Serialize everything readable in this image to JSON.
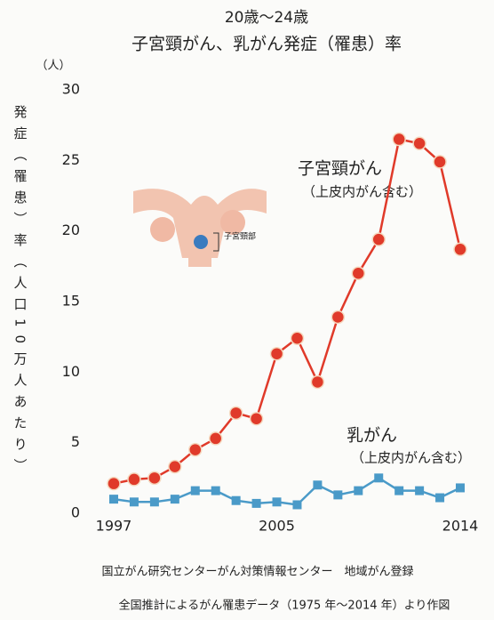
{
  "chart_data": {
    "type": "line",
    "title": "20歳～24歳",
    "subtitle": "子宮頸がん、乳がん発症（罹患）率",
    "y_unit": "（人）",
    "y_label": "発症（罹患）率（人口10万人あたり）",
    "x": [
      1997,
      1998,
      1999,
      2000,
      2001,
      2002,
      2003,
      2004,
      2005,
      2006,
      2007,
      2008,
      2009,
      2010,
      2011,
      2012,
      2013,
      2014
    ],
    "xlim": [
      1997,
      2014
    ],
    "xticks": [
      1997,
      2005,
      2014
    ],
    "ylim": [
      0,
      30
    ],
    "yticks": [
      0,
      5,
      10,
      15,
      20,
      25,
      30
    ],
    "grid": false,
    "series": [
      {
        "name": "子宮頸がん",
        "note": "（上皮内がん含む）",
        "color": "#e03a2a",
        "marker": "circle",
        "values": [
          2.1,
          2.4,
          2.5,
          3.3,
          4.5,
          5.3,
          7.1,
          6.7,
          11.3,
          12.4,
          9.3,
          13.9,
          17.0,
          19.4,
          26.5,
          26.2,
          24.9,
          18.7
        ]
      },
      {
        "name": "乳がん",
        "note": "（上皮内がん含む）",
        "color": "#4a9ac8",
        "marker": "square",
        "values": [
          1.0,
          0.8,
          0.8,
          1.0,
          1.6,
          1.6,
          0.9,
          0.7,
          0.8,
          0.6,
          2.0,
          1.3,
          1.6,
          2.5,
          1.6,
          1.6,
          1.1,
          1.8
        ]
      }
    ],
    "illustration_label": "子宮頸部",
    "source": [
      "国立がん研究センターがん対策情報センター　地域がん登録",
      "全国推計によるがん罹患データ（1975 年～2014 年）より作図"
    ]
  }
}
